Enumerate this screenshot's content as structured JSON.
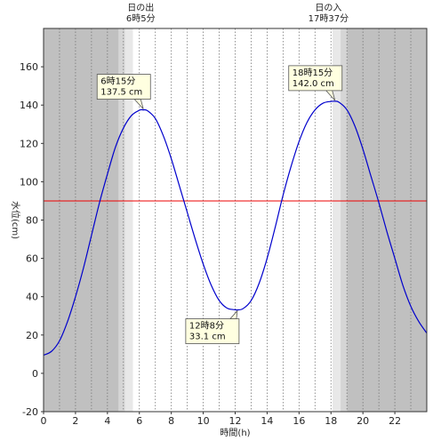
{
  "chart_data": {
    "type": "line",
    "xlabel": "時間(h)",
    "ylabel": "水位(cm)",
    "xlim": [
      0,
      24
    ],
    "ylim": [
      -20,
      180
    ],
    "x_ticks": [
      0,
      2,
      4,
      6,
      8,
      10,
      12,
      14,
      16,
      18,
      20,
      22
    ],
    "y_ticks": [
      -20,
      0,
      20,
      40,
      60,
      80,
      100,
      120,
      140,
      160
    ],
    "grid": {
      "vertical_minor_dotted": true,
      "horizontal": false
    },
    "colors": {
      "night": "#c0c0c0",
      "twilight_dark": "#d5d5d5",
      "twilight_light": "#e8e8e8",
      "day": "#ffffff",
      "line": "#0000cc",
      "reference": "#ee0000",
      "annotation_fill": "#ffffe0"
    },
    "sunrise": {
      "label": "日の出",
      "time_label": "6時5分",
      "x": 6.083
    },
    "sunset": {
      "label": "日の入",
      "time_label": "17時37分",
      "x": 17.617
    },
    "shading": [
      {
        "from": 0,
        "to": 4.7,
        "kind": "night"
      },
      {
        "from": 4.7,
        "to": 5.1,
        "kind": "twilight_dark"
      },
      {
        "from": 5.1,
        "to": 5.6,
        "kind": "twilight_light"
      },
      {
        "from": 5.6,
        "to": 18.1,
        "kind": "day"
      },
      {
        "from": 18.1,
        "to": 18.6,
        "kind": "twilight_light"
      },
      {
        "from": 18.6,
        "to": 19.0,
        "kind": "twilight_dark"
      },
      {
        "from": 19.0,
        "to": 24,
        "kind": "night"
      }
    ],
    "reference_line": {
      "y": 90
    },
    "annotations": [
      {
        "line1": "6時15分",
        "line2": "137.5 cm",
        "x": 6.25,
        "y": 137.5,
        "placement": "above-left"
      },
      {
        "line1": "12時8分",
        "line2": "33.1 cm",
        "x": 12.133,
        "y": 33.1,
        "placement": "below-left"
      },
      {
        "line1": "18時15分",
        "line2": "142.0 cm",
        "x": 18.25,
        "y": 142.0,
        "placement": "above-left"
      }
    ],
    "series": [
      {
        "x": [
          0,
          0.5,
          1,
          1.5,
          2,
          2.5,
          3,
          3.5,
          4,
          4.5,
          5,
          5.5,
          6,
          6.25,
          6.5,
          7,
          7.5,
          8,
          8.5,
          9,
          9.5,
          10,
          10.5,
          11,
          11.5,
          12,
          12.133,
          12.5,
          13,
          13.5,
          14,
          14.5,
          15,
          15.5,
          16,
          16.5,
          17,
          17.5,
          18,
          18.25,
          18.5,
          19,
          19.5,
          20,
          20.5,
          21,
          21.5,
          22,
          22.5,
          23,
          23.5,
          24
        ],
        "y": [
          9.5,
          11.5,
          17,
          27,
          40,
          55,
          72,
          89,
          104,
          118,
          128,
          134.5,
          137.3,
          137.5,
          137.1,
          133,
          124,
          112,
          98,
          84,
          70,
          57,
          46,
          38,
          34,
          33.2,
          33.1,
          33.8,
          38,
          47,
          60,
          76,
          93,
          108,
          121,
          131,
          137.5,
          141,
          141.9,
          142.0,
          141.5,
          137.5,
          129,
          117,
          103,
          89,
          74,
          60,
          46,
          35,
          27,
          21
        ]
      }
    ]
  }
}
